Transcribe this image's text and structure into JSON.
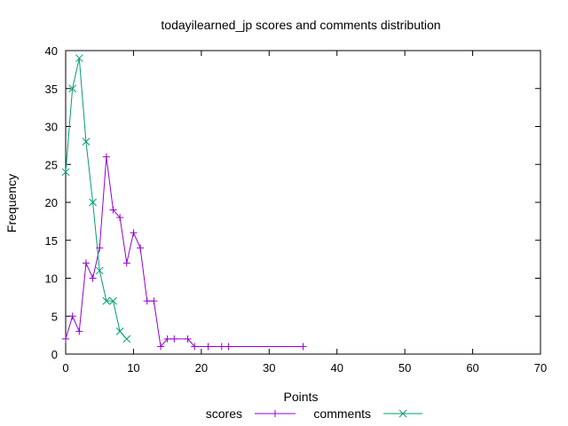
{
  "chart_data": {
    "type": "line",
    "title": "todayilearned_jp scores and comments distribution",
    "xlabel": "Points",
    "ylabel": "Frequency",
    "xlim": [
      0,
      70
    ],
    "ylim": [
      0,
      40
    ],
    "x_ticks": [
      0,
      10,
      20,
      30,
      40,
      50,
      60,
      70
    ],
    "y_ticks": [
      0,
      5,
      10,
      15,
      20,
      25,
      30,
      35,
      40
    ],
    "grid": false,
    "legend_position": "bottom-center",
    "series": [
      {
        "name": "scores",
        "color": "#9400d3",
        "marker": "plus",
        "points": [
          [
            0,
            2
          ],
          [
            1,
            5
          ],
          [
            2,
            3
          ],
          [
            3,
            12
          ],
          [
            4,
            10
          ],
          [
            5,
            14
          ],
          [
            6,
            26
          ],
          [
            7,
            19
          ],
          [
            8,
            18
          ],
          [
            9,
            12
          ],
          [
            10,
            16
          ],
          [
            11,
            14
          ],
          [
            12,
            7
          ],
          [
            13,
            7
          ],
          [
            14,
            1
          ],
          [
            15,
            2
          ],
          [
            16,
            2
          ],
          [
            18,
            2
          ],
          [
            19,
            1
          ],
          [
            21,
            1
          ],
          [
            23,
            1
          ],
          [
            24,
            1
          ],
          [
            35,
            1
          ]
        ]
      },
      {
        "name": "comments",
        "color": "#009e73",
        "marker": "cross",
        "points": [
          [
            0,
            24
          ],
          [
            1,
            35
          ],
          [
            2,
            39
          ],
          [
            3,
            28
          ],
          [
            4,
            20
          ],
          [
            5,
            11
          ],
          [
            6,
            7
          ],
          [
            7,
            7
          ],
          [
            8,
            3
          ],
          [
            9,
            2
          ]
        ]
      }
    ]
  }
}
